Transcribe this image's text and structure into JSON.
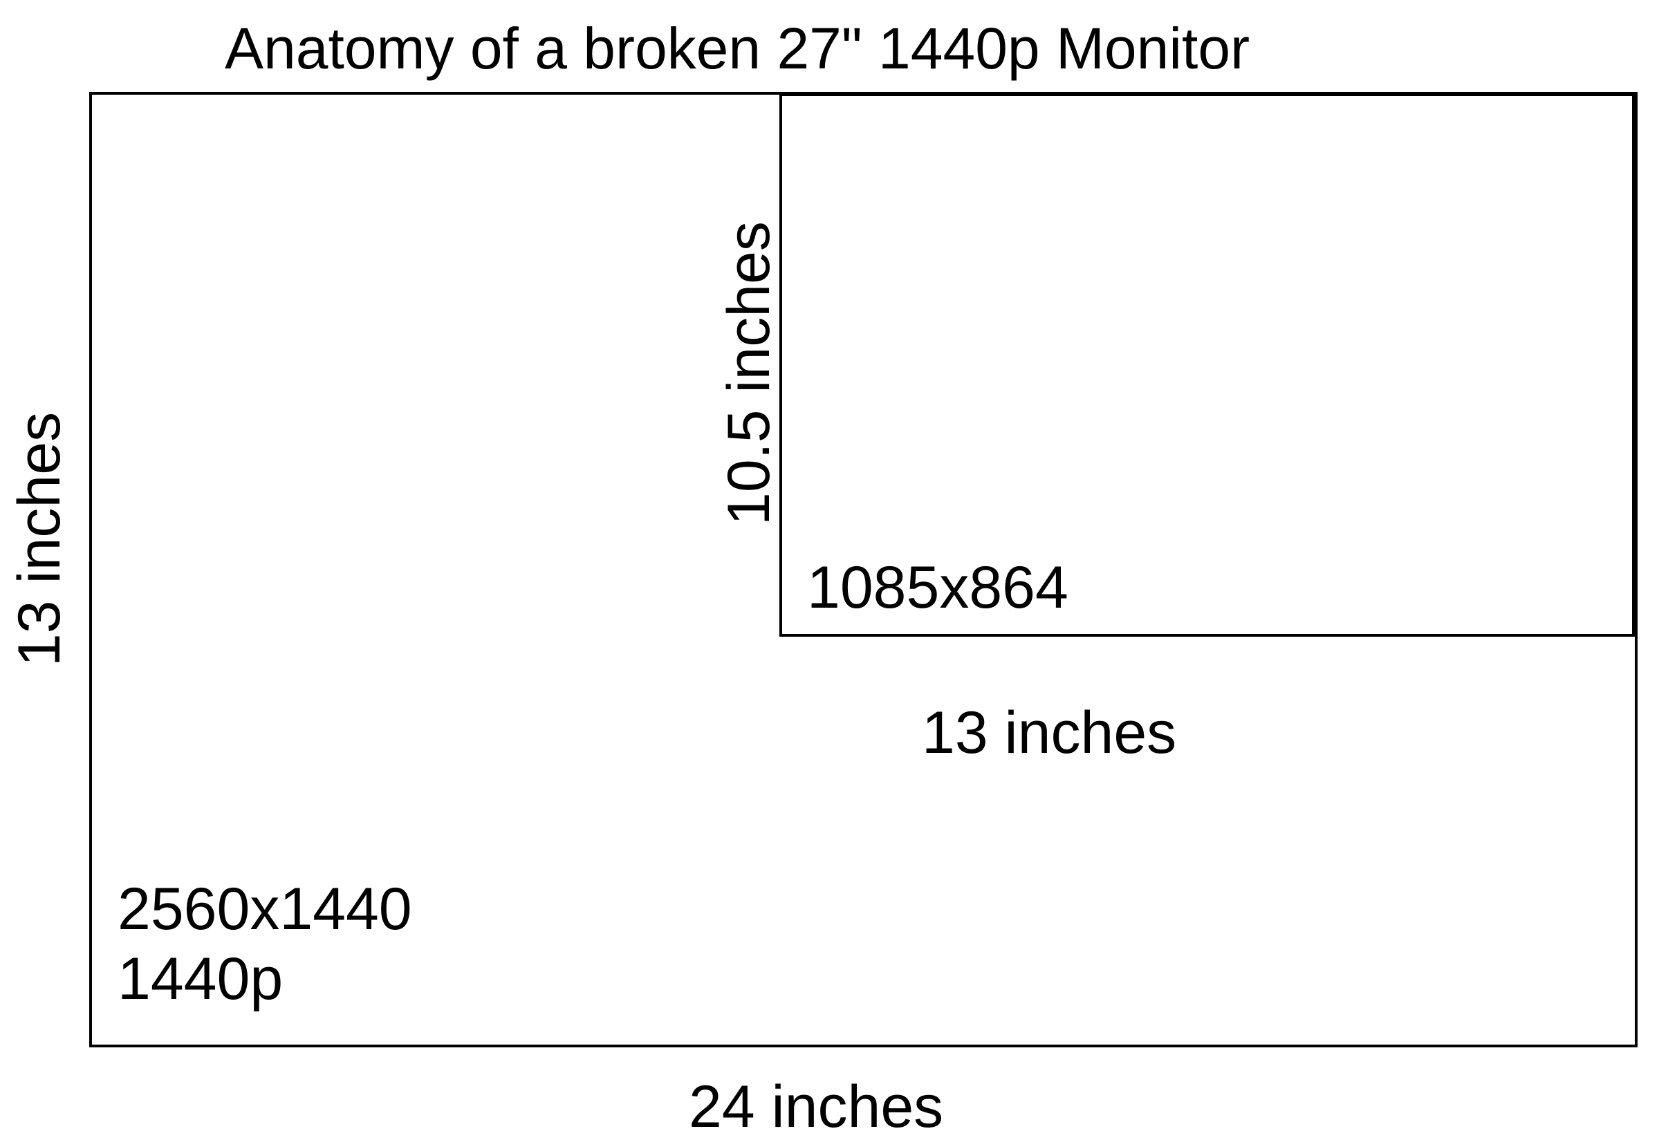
{
  "title": "Anatomy of a broken 27\" 1440p Monitor",
  "outer_screen": {
    "resolution": "2560x1440",
    "resolution_name": "1440p",
    "width_label": "24 inches",
    "height_label": "13 inches"
  },
  "working_area": {
    "resolution": "1085x864",
    "width_label": "13 inches",
    "height_label": "10.5 inches"
  },
  "colors": {
    "line": "#000000",
    "background": "#ffffff"
  }
}
